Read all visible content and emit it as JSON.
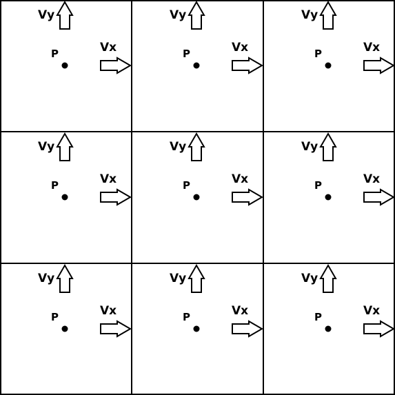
{
  "grid": {
    "rows": 3,
    "cols": 3
  },
  "cells": [
    {
      "vy_label": "Vy",
      "vx_label": "Vx",
      "point_label": "P"
    },
    {
      "vy_label": "Vy",
      "vx_label": "Vx",
      "point_label": "P"
    },
    {
      "vy_label": "Vy",
      "vx_label": "Vx",
      "point_label": "P"
    },
    {
      "vy_label": "Vy",
      "vx_label": "Vx",
      "point_label": "P"
    },
    {
      "vy_label": "Vy",
      "vx_label": "Vx",
      "point_label": "P"
    },
    {
      "vy_label": "Vy",
      "vx_label": "Vx",
      "point_label": "P"
    },
    {
      "vy_label": "Vy",
      "vx_label": "Vx",
      "point_label": "P"
    },
    {
      "vy_label": "Vy",
      "vx_label": "Vx",
      "point_label": "P"
    },
    {
      "vy_label": "Vy",
      "vx_label": "Vx",
      "point_label": "P"
    }
  ],
  "colors": {
    "line": "#000000",
    "background": "#ffffff"
  }
}
